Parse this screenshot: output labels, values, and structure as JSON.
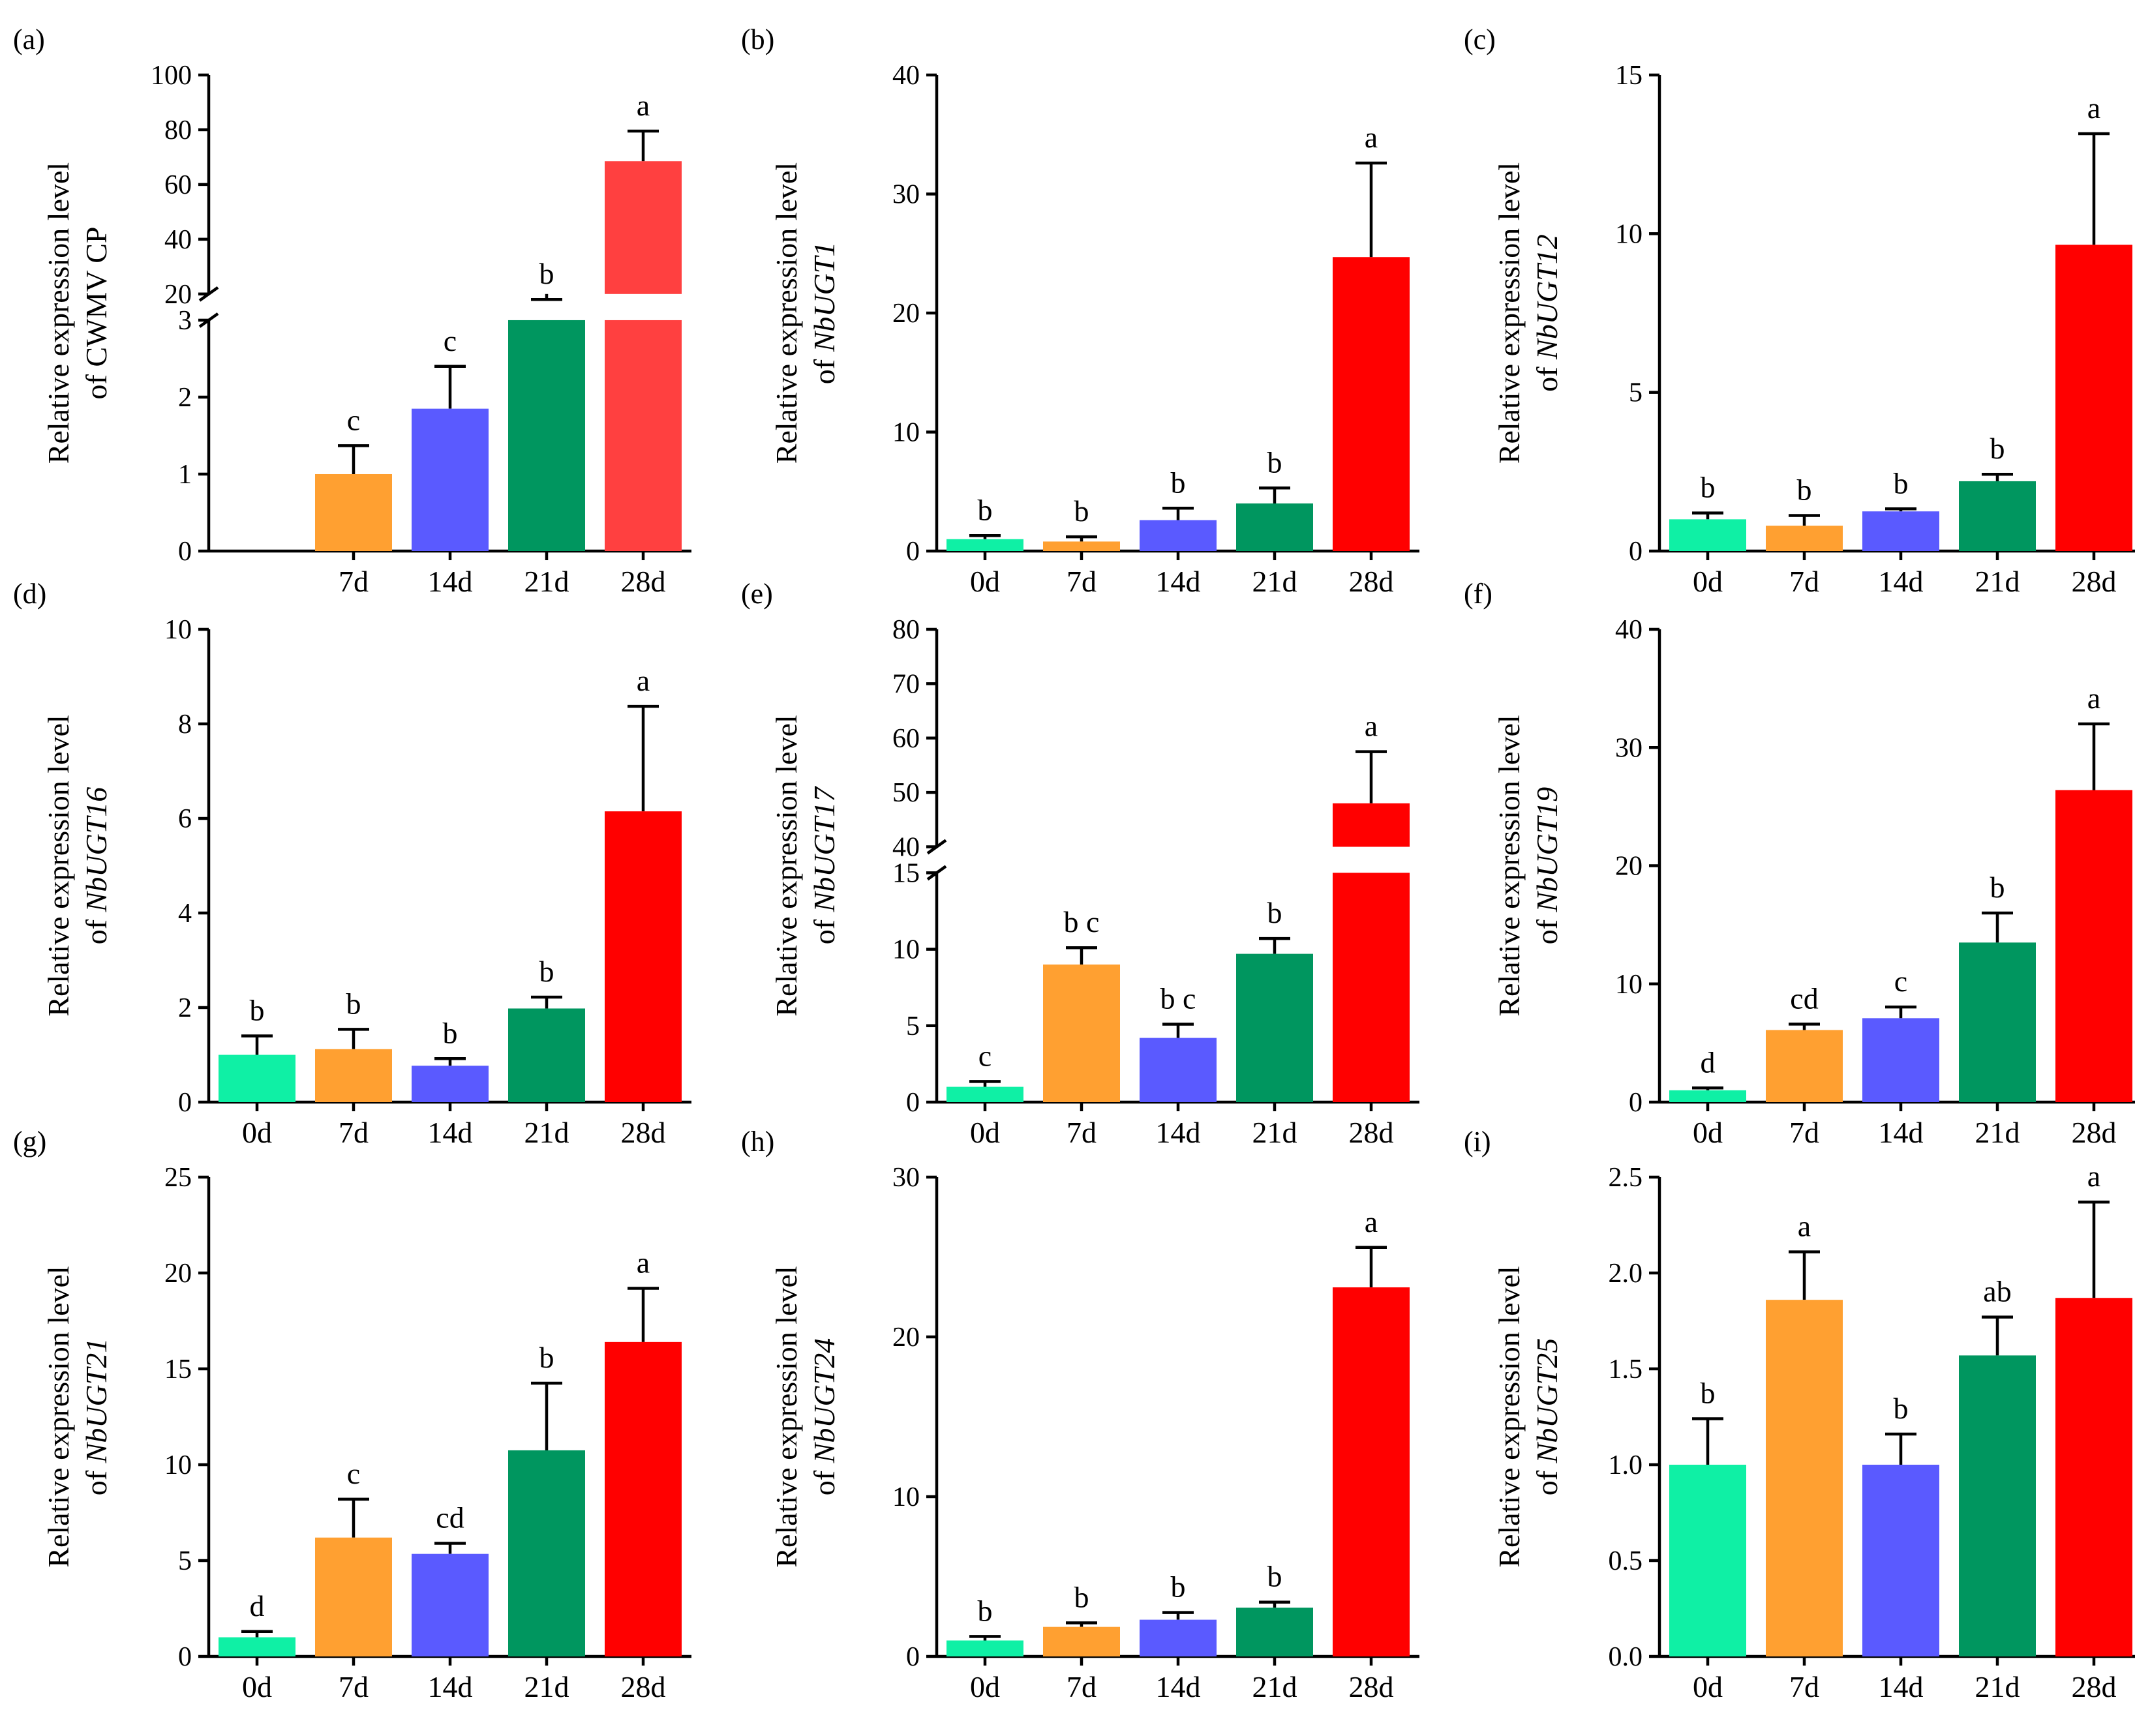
{
  "ylabel_line1": "Relative expression level",
  "ylabel_prefix": "of ",
  "colors": {
    "0d": "#0ff0a5",
    "7d": "#ffa031",
    "14d": "#5a5aff",
    "21d": "#00965f",
    "28d": "#ff0000",
    "28d_light": "#ff4040"
  },
  "chart_data": [
    {
      "panel": "(a)",
      "type": "bar",
      "gene": "CWMV CP",
      "italic": false,
      "categories": [
        "7d",
        "14d",
        "21d",
        "28d"
      ],
      "values": [
        1.0,
        1.85,
        16.0,
        68.5
      ],
      "errors": [
        0.37,
        0.55,
        2.0,
        11.0
      ],
      "letters": [
        "c",
        "c",
        "b",
        "a"
      ],
      "axis_break": {
        "lower": [
          0,
          3
        ],
        "upper": [
          20,
          100
        ]
      },
      "lower_ticks": [
        0,
        1,
        2,
        3
      ],
      "upper_ticks": [
        20,
        40,
        60,
        80,
        100
      ],
      "color_keys": [
        "7d",
        "14d",
        "21d",
        "28d_light"
      ]
    },
    {
      "panel": "(b)",
      "type": "bar",
      "gene": "NbUGT1",
      "italic": true,
      "categories": [
        "0d",
        "7d",
        "14d",
        "21d",
        "28d"
      ],
      "values": [
        1.0,
        0.8,
        2.6,
        4.0,
        24.7
      ],
      "errors": [
        0.3,
        0.4,
        1.0,
        1.3,
        7.9
      ],
      "letters": [
        "b",
        "b",
        "b",
        "b",
        "a"
      ],
      "ylim": [
        0,
        40
      ],
      "ticks": [
        0,
        10,
        20,
        30,
        40
      ]
    },
    {
      "panel": "(c)",
      "type": "bar",
      "gene": "NbUGT12",
      "italic": true,
      "categories": [
        "0d",
        "7d",
        "14d",
        "21d",
        "28d"
      ],
      "values": [
        1.0,
        0.8,
        1.25,
        2.2,
        9.65
      ],
      "errors": [
        0.2,
        0.32,
        0.08,
        0.22,
        3.5
      ],
      "letters": [
        "b",
        "b",
        "b",
        "b",
        "a"
      ],
      "ylim": [
        0,
        15
      ],
      "ticks": [
        0,
        5,
        10,
        15
      ]
    },
    {
      "panel": "(d)",
      "type": "bar",
      "gene": "NbUGT16",
      "italic": true,
      "categories": [
        "0d",
        "7d",
        "14d",
        "21d",
        "28d"
      ],
      "values": [
        1.0,
        1.12,
        0.77,
        1.98,
        6.15
      ],
      "errors": [
        0.4,
        0.42,
        0.15,
        0.24,
        2.22
      ],
      "letters": [
        "b",
        "b",
        "b",
        "b",
        "a"
      ],
      "ylim": [
        0,
        10
      ],
      "ticks": [
        0,
        2,
        4,
        6,
        8,
        10
      ]
    },
    {
      "panel": "(e)",
      "type": "bar",
      "gene": "NbUGT17",
      "italic": true,
      "categories": [
        "0d",
        "7d",
        "14d",
        "21d",
        "28d"
      ],
      "values": [
        1.0,
        9.0,
        4.2,
        9.7,
        48.0
      ],
      "errors": [
        0.35,
        1.1,
        0.9,
        1.0,
        9.5
      ],
      "letters": [
        "c",
        "b c",
        "b c",
        "b",
        "a"
      ],
      "axis_break": {
        "lower": [
          0,
          15
        ],
        "upper": [
          40,
          80
        ]
      },
      "lower_ticks": [
        0,
        5,
        10,
        15
      ],
      "upper_ticks": [
        40,
        50,
        60,
        70,
        80
      ]
    },
    {
      "panel": "(f)",
      "type": "bar",
      "gene": "NbUGT19",
      "italic": true,
      "categories": [
        "0d",
        "7d",
        "14d",
        "21d",
        "28d"
      ],
      "values": [
        1.0,
        6.1,
        7.1,
        13.5,
        26.4
      ],
      "errors": [
        0.2,
        0.5,
        0.95,
        2.5,
        5.6
      ],
      "letters": [
        "d",
        "cd",
        "c",
        "b",
        "a"
      ],
      "ylim": [
        0,
        40
      ],
      "ticks": [
        0,
        10,
        20,
        30,
        40
      ]
    },
    {
      "panel": "(g)",
      "type": "bar",
      "gene": "NbUGT21",
      "italic": true,
      "categories": [
        "0d",
        "7d",
        "14d",
        "21d",
        "28d"
      ],
      "values": [
        1.0,
        6.2,
        5.35,
        10.75,
        16.4
      ],
      "errors": [
        0.3,
        2.0,
        0.55,
        3.5,
        2.8
      ],
      "letters": [
        "d",
        "c",
        "cd",
        "b",
        "a"
      ],
      "ylim": [
        0,
        25
      ],
      "ticks": [
        0,
        5,
        10,
        15,
        20,
        25
      ]
    },
    {
      "panel": "(h)",
      "type": "bar",
      "gene": "NbUGT24",
      "italic": true,
      "categories": [
        "0d",
        "7d",
        "14d",
        "21d",
        "28d"
      ],
      "values": [
        1.0,
        1.85,
        2.3,
        3.05,
        23.1
      ],
      "errors": [
        0.25,
        0.25,
        0.45,
        0.35,
        2.5
      ],
      "letters": [
        "b",
        "b",
        "b",
        "b",
        "a"
      ],
      "ylim": [
        0,
        30
      ],
      "ticks": [
        0,
        10,
        20,
        30
      ]
    },
    {
      "panel": "(i)",
      "type": "bar",
      "gene": "NbUGT25",
      "italic": true,
      "categories": [
        "0d",
        "7d",
        "14d",
        "21d",
        "28d"
      ],
      "values": [
        1.0,
        1.86,
        1.0,
        1.57,
        1.87
      ],
      "errors": [
        0.24,
        0.25,
        0.16,
        0.2,
        0.5
      ],
      "letters": [
        "b",
        "a",
        "b",
        "ab",
        "a"
      ],
      "ylim": [
        0,
        2.5
      ],
      "ticks": [
        0.0,
        0.5,
        1.0,
        1.5,
        2.0,
        2.5
      ],
      "tick_decimals": 1
    }
  ]
}
